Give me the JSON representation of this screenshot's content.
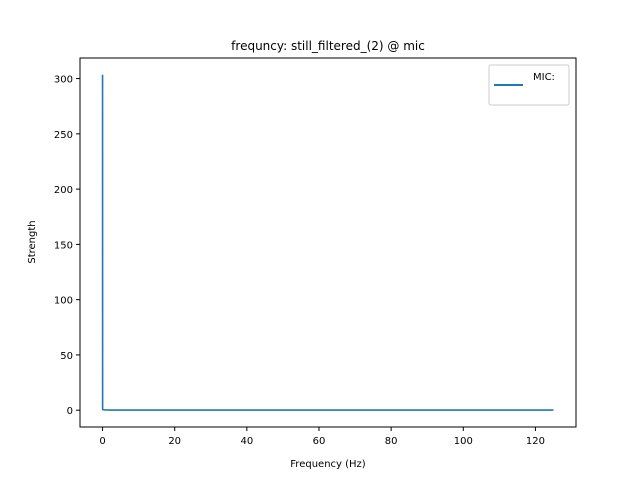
{
  "chart_data": {
    "type": "line",
    "title": "frequncy: still_filtered_(2) @ mic",
    "xlabel": "Frequency (Hz)",
    "ylabel": "Strength",
    "xlim": [
      -6.25,
      131.25
    ],
    "ylim": [
      -15.2,
      318.6
    ],
    "xticks": [
      0,
      20,
      40,
      60,
      80,
      100,
      120
    ],
    "yticks": [
      0,
      50,
      100,
      150,
      200,
      250,
      300
    ],
    "grid": false,
    "legend_position": "upper right",
    "series": [
      {
        "name": "MIC:",
        "color": "#1f77b4",
        "x": [
          0,
          0.02,
          0.5,
          1,
          2,
          5,
          10,
          20,
          40,
          60,
          80,
          100,
          120,
          125
        ],
        "y": [
          303.5,
          0.6,
          0.3,
          0.2,
          0.1,
          0.1,
          0.1,
          0.1,
          0.1,
          0.1,
          0.1,
          0.1,
          0.1,
          0.1
        ]
      }
    ]
  }
}
